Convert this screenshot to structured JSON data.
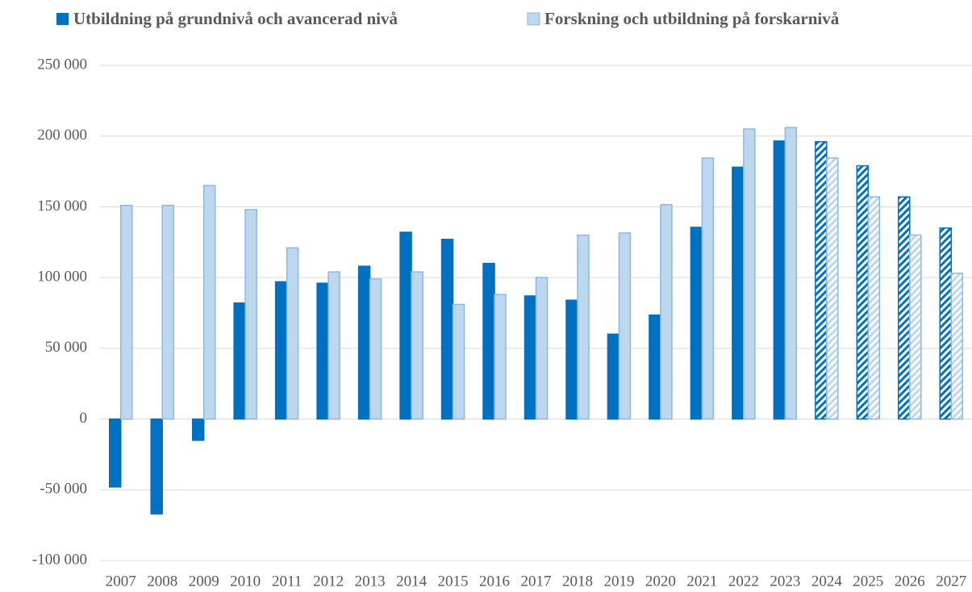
{
  "chart_data": {
    "type": "bar",
    "categories": [
      "2007",
      "2008",
      "2009",
      "2010",
      "2011",
      "2012",
      "2013",
      "2014",
      "2015",
      "2016",
      "2017",
      "2018",
      "2019",
      "2020",
      "2021",
      "2022",
      "2023",
      "2024",
      "2025",
      "2026",
      "2027"
    ],
    "series": [
      {
        "name": "Utbildning på grundnivå och avancerad nivå",
        "color": "#0070c0",
        "values": [
          -48000,
          -67000,
          -15000,
          82000,
          97000,
          96000,
          108000,
          132000,
          127000,
          110000,
          87000,
          84000,
          60000,
          73500,
          135500,
          178000,
          196500,
          196000,
          179000,
          157000,
          135000
        ]
      },
      {
        "name": "Forskning och utbildning på forskarnivå",
        "color": "#bdd7ee",
        "values": [
          151000,
          151000,
          165000,
          148000,
          121000,
          104000,
          99000,
          104000,
          81000,
          88000,
          100000,
          130000,
          131500,
          151500,
          184500,
          205000,
          206000,
          184500,
          157000,
          130000,
          103000
        ]
      }
    ],
    "hatched": [
      false,
      false,
      false,
      false,
      false,
      false,
      false,
      false,
      false,
      false,
      false,
      false,
      false,
      false,
      false,
      false,
      false,
      true,
      true,
      true,
      true
    ],
    "ylim": [
      -100000,
      250000
    ],
    "yticks": [
      {
        "value": -100000,
        "label": "-100 000"
      },
      {
        "value": -50000,
        "label": "-50 000"
      },
      0,
      {
        "value": 50000,
        "label": "50 000"
      },
      {
        "value": 100000,
        "label": "100 000"
      },
      {
        "value": 150000,
        "label": "150 000"
      },
      {
        "value": 200000,
        "label": "200 000"
      },
      {
        "value": 250000,
        "label": "250 000"
      }
    ],
    "grid": true,
    "legend": "top"
  }
}
